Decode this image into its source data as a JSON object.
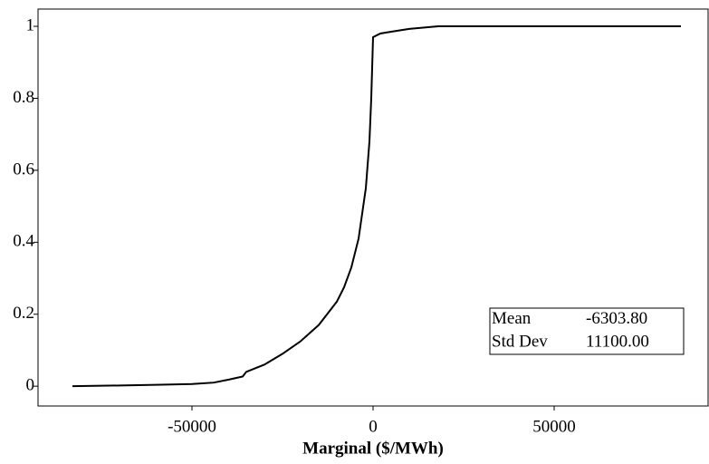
{
  "chart_data": {
    "type": "line",
    "xlabel": "Marginal ($/MWh)",
    "x": [
      -83000,
      -70000,
      -60000,
      -50000,
      -44000,
      -40000,
      -36000,
      -35000,
      -30000,
      -25000,
      -20000,
      -15000,
      -10000,
      -8000,
      -6000,
      -4000,
      -2000,
      -1000,
      -500,
      0,
      2000,
      5000,
      10000,
      18000,
      40000,
      85000
    ],
    "series": [
      {
        "color": "#000000",
        "values": [
          0,
          0.002,
          0.004,
          0.006,
          0.01,
          0.018,
          0.027,
          0.04,
          0.06,
          0.09,
          0.125,
          0.17,
          0.235,
          0.275,
          0.33,
          0.41,
          0.55,
          0.68,
          0.8,
          0.97,
          0.98,
          0.985,
          0.993,
          1,
          1,
          1
        ]
      }
    ],
    "xlim": [
      -92500,
      92500
    ],
    "ylim": [
      -0.055,
      1.048
    ],
    "xticks": [
      -50000,
      0,
      50000
    ],
    "yticks": [
      0,
      0.2,
      0.4,
      0.6,
      0.8,
      1
    ],
    "stats": {
      "rows": [
        [
          "Mean",
          "-6303.80"
        ],
        [
          "Std Dev",
          "11100.00"
        ]
      ]
    }
  }
}
